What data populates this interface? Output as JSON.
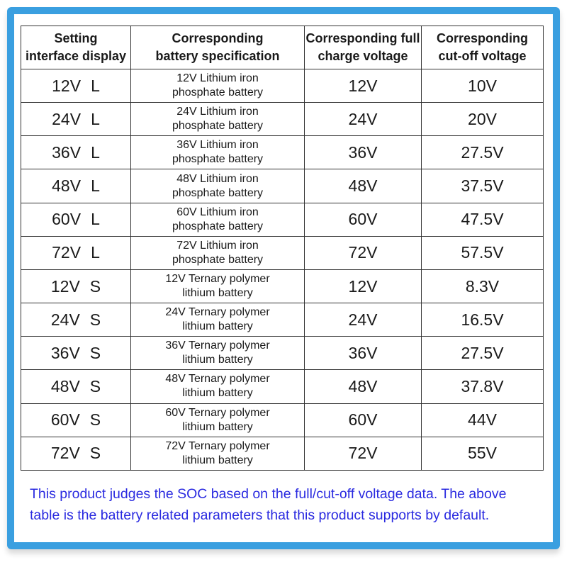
{
  "headers": {
    "setting": [
      "Setting",
      "interface display"
    ],
    "spec": [
      "Corresponding",
      "battery specification"
    ],
    "full": [
      "Corresponding full",
      "charge voltage"
    ],
    "cutoff": [
      "Corresponding",
      "cut-off voltage"
    ]
  },
  "rows": [
    {
      "voltage": "12V",
      "type": "L",
      "spec_line1": "12V Lithium iron",
      "spec_line2": "phosphate battery",
      "full": "12V",
      "cutoff": "10V"
    },
    {
      "voltage": "24V",
      "type": "L",
      "spec_line1": "24V Lithium iron",
      "spec_line2": "phosphate battery",
      "full": "24V",
      "cutoff": "20V"
    },
    {
      "voltage": "36V",
      "type": "L",
      "spec_line1": "36V Lithium iron",
      "spec_line2": "phosphate battery",
      "full": "36V",
      "cutoff": "27.5V"
    },
    {
      "voltage": "48V",
      "type": "L",
      "spec_line1": "48V Lithium iron",
      "spec_line2": "phosphate battery",
      "full": "48V",
      "cutoff": "37.5V"
    },
    {
      "voltage": "60V",
      "type": "L",
      "spec_line1": "60V Lithium iron",
      "spec_line2": "phosphate battery",
      "full": "60V",
      "cutoff": "47.5V"
    },
    {
      "voltage": "72V",
      "type": "L",
      "spec_line1": "72V Lithium iron",
      "spec_line2": "phosphate battery",
      "full": "72V",
      "cutoff": "57.5V"
    },
    {
      "voltage": "12V",
      "type": "S",
      "spec_line1": "12V Ternary polymer",
      "spec_line2": "lithium battery",
      "full": "12V",
      "cutoff": "8.3V"
    },
    {
      "voltage": "24V",
      "type": "S",
      "spec_line1": "24V Ternary polymer",
      "spec_line2": "lithium battery",
      "full": "24V",
      "cutoff": "16.5V"
    },
    {
      "voltage": "36V",
      "type": "S",
      "spec_line1": "36V Ternary polymer",
      "spec_line2": "lithium battery",
      "full": "36V",
      "cutoff": "27.5V"
    },
    {
      "voltage": "48V",
      "type": "S",
      "spec_line1": "48V Ternary polymer",
      "spec_line2": "lithium battery",
      "full": "48V",
      "cutoff": "37.8V"
    },
    {
      "voltage": "60V",
      "type": "S",
      "spec_line1": "60V Ternary polymer",
      "spec_line2": "lithium battery",
      "full": "60V",
      "cutoff": "44V"
    },
    {
      "voltage": "72V",
      "type": "S",
      "spec_line1": "72V Ternary polymer",
      "spec_line2": "lithium battery",
      "full": "72V",
      "cutoff": "55V"
    }
  ],
  "note": "This product judges the SOC based on the full/cut-off voltage data. The above table is the battery related parameters that this product supports by default.",
  "colors": {
    "frame": "#3a9fe0",
    "note_text": "#2a2ae0",
    "border": "#333333"
  }
}
